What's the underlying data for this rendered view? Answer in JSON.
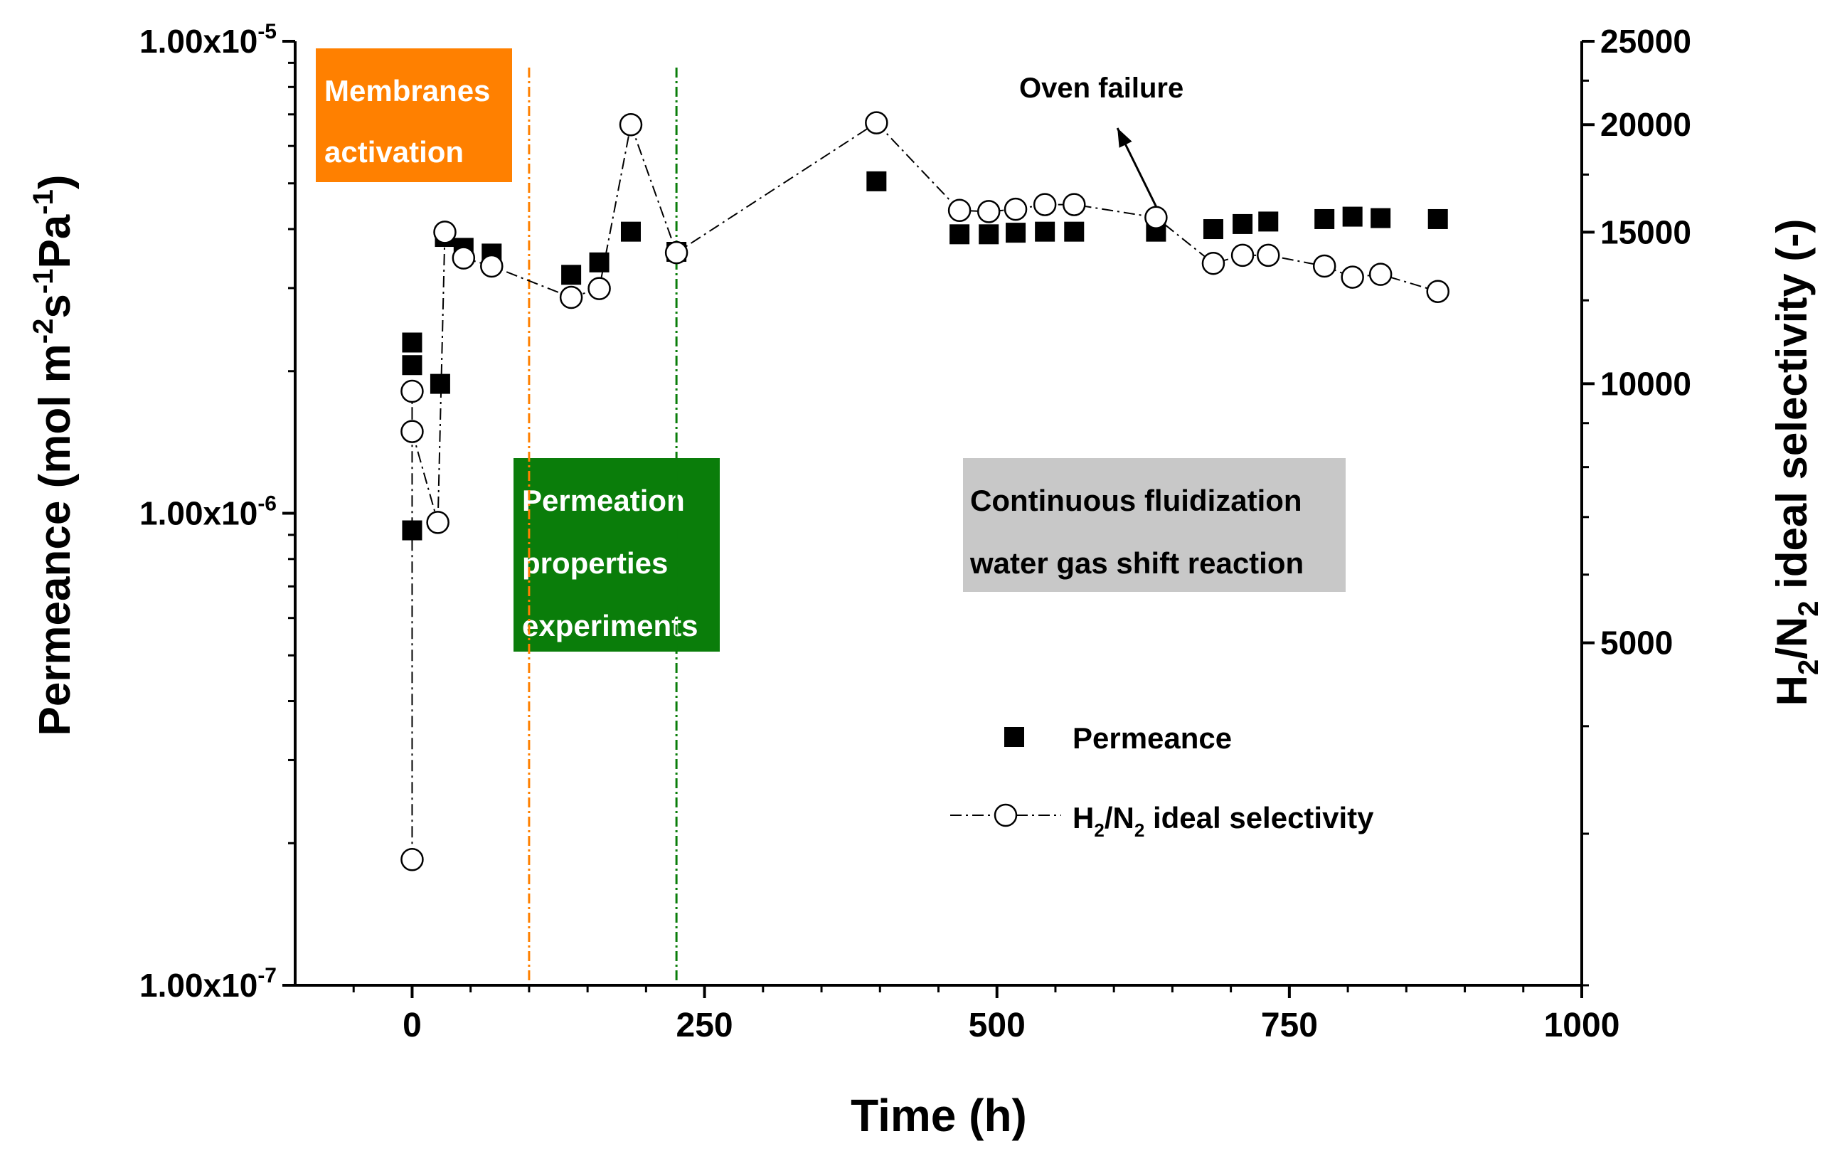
{
  "chart_data": {
    "type": "scatter",
    "xlabel": "Time (h)",
    "xlim": [
      -100,
      1000
    ],
    "xticks": [
      0,
      250,
      500,
      750,
      1000
    ],
    "ylabel_left": "Permeance (mol m-2s-1Pa-1)",
    "ylim_left": [
      1e-07,
      1e-05
    ],
    "yscale_left": "log",
    "left_ticks": [
      {
        "v": 1e-05,
        "base": "1.00x10",
        "exp": "-5"
      },
      {
        "v": 1e-06,
        "base": "1.00x10",
        "exp": "-6"
      },
      {
        "v": 1e-07,
        "base": "1.00x10",
        "exp": "-7"
      }
    ],
    "ylabel_right": "H2/N2 ideal selectivity (-)",
    "ylim_right": [
      2000,
      25000
    ],
    "yscale_right": "log",
    "right_ticks": [
      5000,
      10000,
      15000,
      20000,
      25000
    ],
    "series": [
      {
        "name": "Permeance",
        "legend_label": "Permeance",
        "marker": "filled-square",
        "axis": "left",
        "x": [
          0,
          0,
          0,
          24,
          28,
          44,
          68,
          136,
          160,
          187,
          226,
          397,
          468,
          493,
          516,
          541,
          566,
          636,
          685,
          710,
          732,
          780,
          804,
          828,
          877
        ],
        "y": [
          2.3e-06,
          2.06e-06,
          9.2e-07,
          1.88e-06,
          3.85e-06,
          3.65e-06,
          3.55e-06,
          3.2e-06,
          3.4e-06,
          3.95e-06,
          3.58e-06,
          5.05e-06,
          3.9e-06,
          3.9e-06,
          3.93e-06,
          3.95e-06,
          3.95e-06,
          3.95e-06,
          4e-06,
          4.1e-06,
          4.15e-06,
          4.2e-06,
          4.25e-06,
          4.22e-06,
          4.2e-06
        ]
      },
      {
        "name": "H2/N2 ideal selectivity",
        "legend_base": "H",
        "legend_sub1": "2",
        "legend_mid": "/N",
        "legend_sub2": "2",
        "legend_rest": " ideal selectivity",
        "marker": "open-circle",
        "line": "dash-dot",
        "axis": "right",
        "x": [
          0,
          0,
          0,
          22,
          28,
          44,
          68,
          136,
          160,
          187,
          226,
          397,
          468,
          493,
          516,
          541,
          566,
          636,
          685,
          710,
          732,
          780,
          804,
          828,
          877
        ],
        "y": [
          2800,
          9800,
          8800,
          6900,
          15000,
          14000,
          13700,
          12600,
          12900,
          20000,
          14200,
          20100,
          15900,
          15850,
          15950,
          16150,
          16150,
          15600,
          13800,
          14100,
          14100,
          13700,
          13300,
          13400,
          12800
        ]
      }
    ],
    "annotations": {
      "membranes_activation": {
        "lines": [
          "Membranes",
          "activation"
        ],
        "color": "#ff8000"
      },
      "permeation": {
        "lines": [
          "Permeation",
          "properties",
          "experiments"
        ],
        "color": "#0a7d0a"
      },
      "continuous": {
        "lines": [
          "Continuous fluidization",
          "water gas shift reaction"
        ],
        "color": "#c8c8c8"
      },
      "oven_failure": {
        "text": "Oven failure",
        "arrow_from_x": 636,
        "arrow_to_x": 603
      },
      "vlines": [
        {
          "x": 100,
          "color": "#ff8000"
        },
        {
          "x": 226,
          "color": "#0a7d0a"
        }
      ]
    }
  }
}
